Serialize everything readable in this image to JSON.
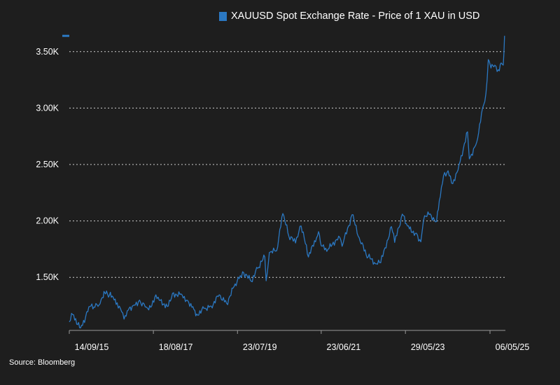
{
  "chart_data": {
    "type": "line",
    "title": "",
    "xlabel": "",
    "ylabel": "",
    "grid": "horizontal dotted",
    "legend_position": "top-right",
    "colors": {
      "background": "#1e1e1e",
      "line": "#2b78c2",
      "grid": "#cfcfcf",
      "text": "#ffffff"
    },
    "ylim": [
      1030,
      3660
    ],
    "xlim": [
      "2015-09-14",
      "2025-05-06"
    ],
    "y_ticks": [
      {
        "value": 1500,
        "label": "1.50K"
      },
      {
        "value": 2000,
        "label": "2.00K"
      },
      {
        "value": 2500,
        "label": "2.50K"
      },
      {
        "value": 3000,
        "label": "3.00K"
      },
      {
        "value": 3500,
        "label": "3.50K"
      }
    ],
    "x_ticks": [
      {
        "date": "2015-09-14",
        "label": "14/09/15"
      },
      {
        "date": "2017-08-18",
        "label": "18/08/17"
      },
      {
        "date": "2019-07-23",
        "label": "23/07/19"
      },
      {
        "date": "2021-06-23",
        "label": "23/06/21"
      },
      {
        "date": "2023-05-29",
        "label": "29/05/23"
      },
      {
        "date": "2025-05-06",
        "label": "06/05/25"
      }
    ],
    "last_value_marker": 3640,
    "series": [
      {
        "name": "XAUUSD Spot Exchange Rate - Price of 1 XAU in USD",
        "points": [
          [
            "2015-09-14",
            1105
          ],
          [
            "2015-10-12",
            1170
          ],
          [
            "2015-11-15",
            1085
          ],
          [
            "2015-12-17",
            1052
          ],
          [
            "2016-01-20",
            1100
          ],
          [
            "2016-02-25",
            1240
          ],
          [
            "2016-04-15",
            1235
          ],
          [
            "2016-05-20",
            1255
          ],
          [
            "2016-06-24",
            1320
          ],
          [
            "2016-07-06",
            1365
          ],
          [
            "2016-08-15",
            1340
          ],
          [
            "2016-09-15",
            1325
          ],
          [
            "2016-10-10",
            1260
          ],
          [
            "2016-11-15",
            1225
          ],
          [
            "2016-12-15",
            1130
          ],
          [
            "2017-01-20",
            1210
          ],
          [
            "2017-03-01",
            1250
          ],
          [
            "2017-04-15",
            1285
          ],
          [
            "2017-06-01",
            1265
          ],
          [
            "2017-07-10",
            1212
          ],
          [
            "2017-09-08",
            1345
          ],
          [
            "2017-10-15",
            1295
          ],
          [
            "2017-12-12",
            1243
          ],
          [
            "2018-01-25",
            1358
          ],
          [
            "2018-04-15",
            1345
          ],
          [
            "2018-06-01",
            1295
          ],
          [
            "2018-07-15",
            1240
          ],
          [
            "2018-08-16",
            1175
          ],
          [
            "2018-10-15",
            1225
          ],
          [
            "2018-12-15",
            1245
          ],
          [
            "2019-02-20",
            1345
          ],
          [
            "2019-04-23",
            1270
          ],
          [
            "2019-06-25",
            1420
          ],
          [
            "2019-08-15",
            1515
          ],
          [
            "2019-09-04",
            1550
          ],
          [
            "2019-11-15",
            1465
          ],
          [
            "2020-01-08",
            1580
          ],
          [
            "2020-03-08",
            1680
          ],
          [
            "2020-03-19",
            1470
          ],
          [
            "2020-04-15",
            1720
          ],
          [
            "2020-06-15",
            1735
          ],
          [
            "2020-08-06",
            2065
          ],
          [
            "2020-09-25",
            1865
          ],
          [
            "2020-11-20",
            1805
          ],
          [
            "2021-01-06",
            1955
          ],
          [
            "2021-03-08",
            1680
          ],
          [
            "2021-05-15",
            1850
          ],
          [
            "2021-06-01",
            1905
          ],
          [
            "2021-06-23",
            1780
          ],
          [
            "2021-08-09",
            1730
          ],
          [
            "2021-11-16",
            1865
          ],
          [
            "2021-12-15",
            1775
          ],
          [
            "2022-03-08",
            2055
          ],
          [
            "2022-05-15",
            1820
          ],
          [
            "2022-07-21",
            1680
          ],
          [
            "2022-09-28",
            1620
          ],
          [
            "2022-11-03",
            1630
          ],
          [
            "2023-02-01",
            1950
          ],
          [
            "2023-02-28",
            1810
          ],
          [
            "2023-05-03",
            2060
          ],
          [
            "2023-06-15",
            1955
          ],
          [
            "2023-08-20",
            1890
          ],
          [
            "2023-10-05",
            1815
          ],
          [
            "2023-10-27",
            2005
          ],
          [
            "2023-12-04",
            2080
          ],
          [
            "2024-02-14",
            1995
          ],
          [
            "2024-03-08",
            2180
          ],
          [
            "2024-04-12",
            2400
          ],
          [
            "2024-05-20",
            2445
          ],
          [
            "2024-06-28",
            2330
          ],
          [
            "2024-08-20",
            2500
          ],
          [
            "2024-10-30",
            2790
          ],
          [
            "2024-11-14",
            2550
          ],
          [
            "2025-01-15",
            2700
          ],
          [
            "2025-02-24",
            2955
          ],
          [
            "2025-04-02",
            3130
          ],
          [
            "2025-04-22",
            3430
          ],
          [
            "2025-05-06",
            3390
          ],
          [
            "2025-06-15",
            3380
          ],
          [
            "2025-07-15",
            3340
          ],
          [
            "2025-08-08",
            3400
          ],
          [
            "2025-08-25",
            3380
          ],
          [
            "2025-09-05",
            3640
          ]
        ]
      }
    ]
  },
  "source": "Source: Bloomberg"
}
